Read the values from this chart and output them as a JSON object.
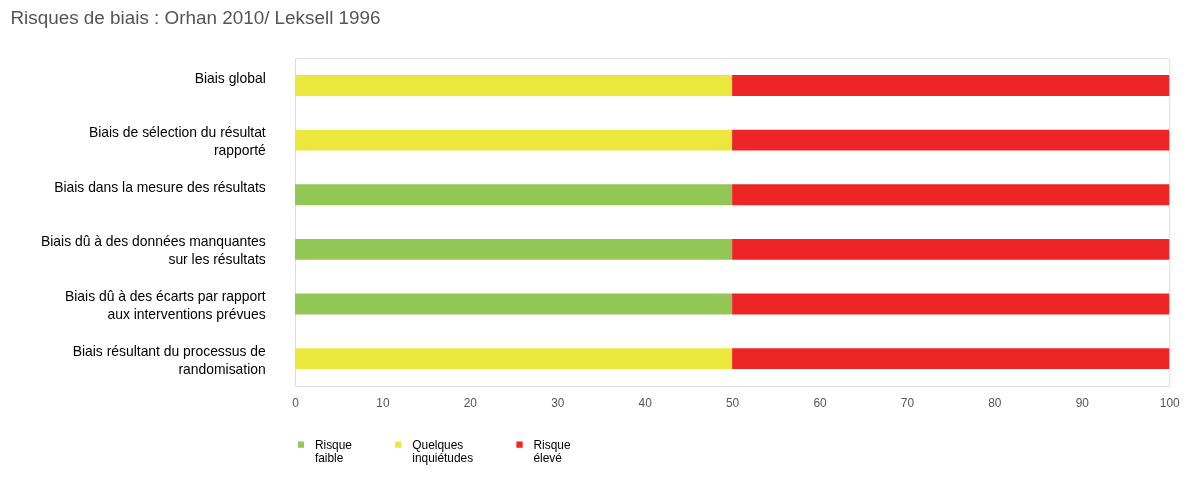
{
  "chart_data": {
    "type": "bar",
    "orientation": "horizontal",
    "stacked": true,
    "title": "Risques de biais :  Orhan 2010/ Leksell 1996",
    "categories": [
      "Biais global",
      "Biais de sélection du résultat rapporté",
      "Biais dans la mesure des résultats",
      "Biais dû à des données manquantes sur les résultats",
      "Biais dû à des écarts par rapport aux interventions prévues",
      "Biais résultant du processus de randomisation"
    ],
    "series": [
      {
        "name": "Risque faible",
        "color": "#92c755",
        "values": [
          null,
          null,
          50,
          50,
          50,
          null
        ]
      },
      {
        "name": "Quelques inquiétudes",
        "color": "#ebe83d",
        "values": [
          50,
          50,
          null,
          null,
          null,
          50
        ]
      },
      {
        "name": "Risque élevé",
        "color": "#ee2526",
        "values": [
          50,
          50,
          50,
          50,
          50,
          50
        ]
      }
    ],
    "xlim": [
      0,
      100
    ],
    "xticks": [
      0,
      10,
      20,
      30,
      40,
      50,
      60,
      70,
      80,
      90,
      100
    ],
    "grid": false,
    "legend": "bottom"
  }
}
